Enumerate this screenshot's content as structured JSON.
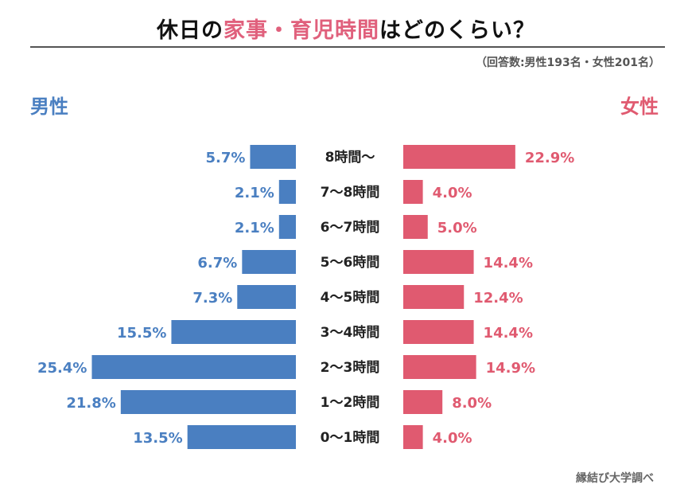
{
  "title": {
    "part1": "休日の",
    "highlight": "家事・育児時間",
    "part2": "はどのくらい？"
  },
  "note": "（回答数:男性193名・女性201名）",
  "credit": "縁結び大学調べ",
  "colors": {
    "male": "#4a7fc1",
    "female": "#e05a70",
    "title_highlight": "#e0607c"
  },
  "chart_data": {
    "type": "bar",
    "orientation": "horizontal-butterfly",
    "unit": "%",
    "categories": [
      "8時間〜",
      "7〜8時間",
      "6〜7時間",
      "5〜6時間",
      "4〜5時間",
      "3〜4時間",
      "2〜3時間",
      "1〜2時間",
      "0〜1時間"
    ],
    "series": [
      {
        "name": "男性",
        "side": "left",
        "values": [
          5.7,
          2.1,
          2.1,
          6.7,
          7.3,
          15.5,
          25.4,
          21.8,
          13.5
        ],
        "labels": [
          "5.7%",
          "2.1%",
          "2.1%",
          "6.7%",
          "7.3%",
          "15.5%",
          "25.4%",
          "21.8%",
          "13.5%"
        ]
      },
      {
        "name": "女性",
        "side": "right",
        "values": [
          22.9,
          4.0,
          5.0,
          14.4,
          12.4,
          14.4,
          14.9,
          8.0,
          4.0
        ],
        "labels": [
          "22.9%",
          "4.0%",
          "5.0%",
          "14.4%",
          "12.4%",
          "14.4%",
          "14.9%",
          "8.0%",
          "4.0%"
        ]
      }
    ]
  }
}
